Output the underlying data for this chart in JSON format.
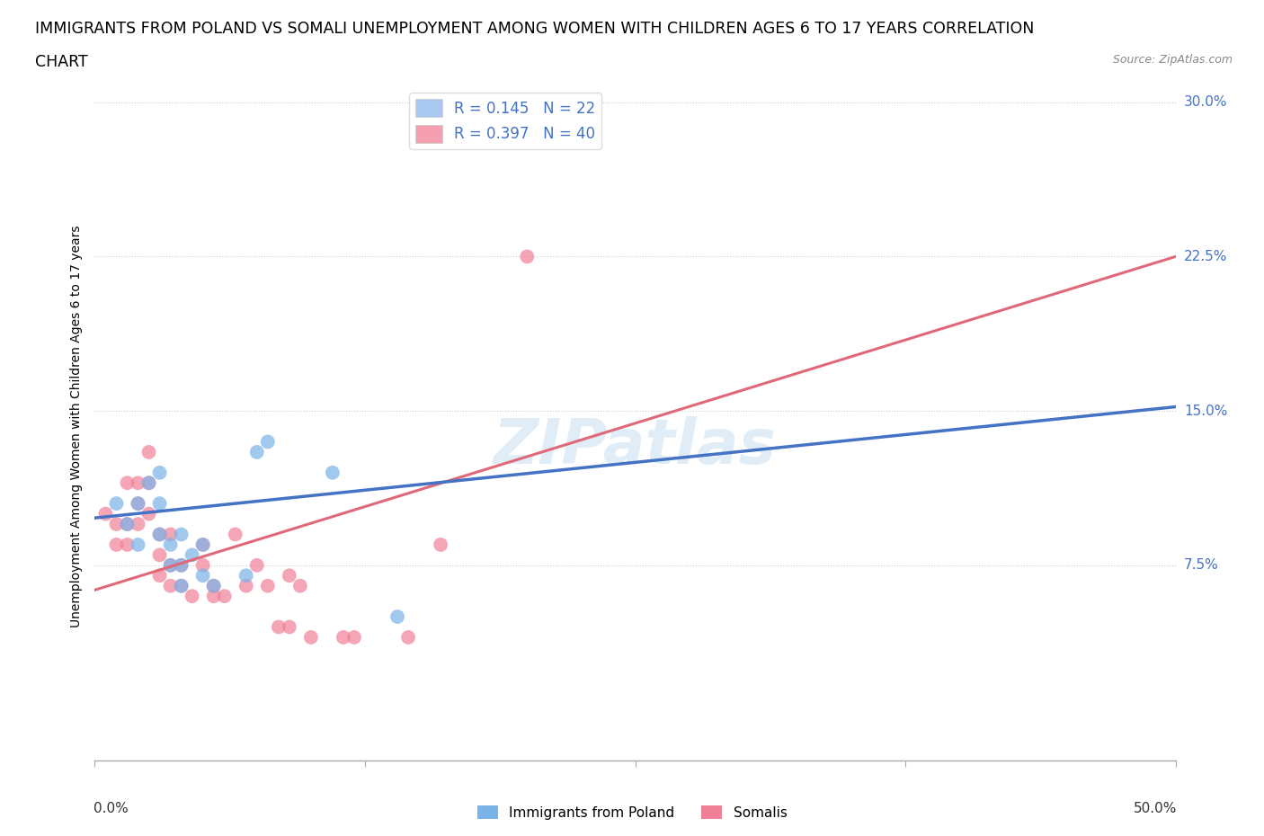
{
  "title_line1": "IMMIGRANTS FROM POLAND VS SOMALI UNEMPLOYMENT AMONG WOMEN WITH CHILDREN AGES 6 TO 17 YEARS CORRELATION",
  "title_line2": "CHART",
  "source": "Source: ZipAtlas.com",
  "ylabel": "Unemployment Among Women with Children Ages 6 to 17 years",
  "legend_entries": [
    {
      "label": "R = 0.145   N = 22",
      "color": "#a8c8f0"
    },
    {
      "label": "R = 0.397   N = 40",
      "color": "#f5a0b0"
    }
  ],
  "watermark": "ZIPatlas",
  "xlim": [
    0.0,
    0.5
  ],
  "ylim": [
    -0.02,
    0.305
  ],
  "yticks": [
    0.0,
    0.075,
    0.15,
    0.225,
    0.3
  ],
  "ytick_labels": [
    "",
    "7.5%",
    "15.0%",
    "22.5%",
    "30.0%"
  ],
  "xticks": [
    0.0,
    0.125,
    0.25,
    0.375,
    0.5
  ],
  "grid_color": "#cccccc",
  "poland_color": "#7ab3e8",
  "somali_color": "#f08098",
  "poland_line_color": "#4472c4",
  "somali_line_color": "#e06878",
  "poland_scatter": [
    [
      0.01,
      0.105
    ],
    [
      0.015,
      0.095
    ],
    [
      0.02,
      0.105
    ],
    [
      0.02,
      0.085
    ],
    [
      0.025,
      0.115
    ],
    [
      0.03,
      0.12
    ],
    [
      0.03,
      0.09
    ],
    [
      0.03,
      0.105
    ],
    [
      0.035,
      0.085
    ],
    [
      0.035,
      0.075
    ],
    [
      0.04,
      0.09
    ],
    [
      0.04,
      0.075
    ],
    [
      0.04,
      0.065
    ],
    [
      0.045,
      0.08
    ],
    [
      0.05,
      0.085
    ],
    [
      0.05,
      0.07
    ],
    [
      0.055,
      0.065
    ],
    [
      0.07,
      0.07
    ],
    [
      0.075,
      0.13
    ],
    [
      0.08,
      0.135
    ],
    [
      0.11,
      0.12
    ],
    [
      0.14,
      0.05
    ]
  ],
  "somali_scatter": [
    [
      0.005,
      0.1
    ],
    [
      0.01,
      0.095
    ],
    [
      0.01,
      0.085
    ],
    [
      0.015,
      0.115
    ],
    [
      0.015,
      0.095
    ],
    [
      0.015,
      0.085
    ],
    [
      0.02,
      0.115
    ],
    [
      0.02,
      0.105
    ],
    [
      0.02,
      0.095
    ],
    [
      0.025,
      0.13
    ],
    [
      0.025,
      0.115
    ],
    [
      0.025,
      0.1
    ],
    [
      0.03,
      0.09
    ],
    [
      0.03,
      0.08
    ],
    [
      0.03,
      0.07
    ],
    [
      0.035,
      0.09
    ],
    [
      0.035,
      0.075
    ],
    [
      0.035,
      0.065
    ],
    [
      0.04,
      0.075
    ],
    [
      0.04,
      0.065
    ],
    [
      0.045,
      0.06
    ],
    [
      0.05,
      0.085
    ],
    [
      0.05,
      0.075
    ],
    [
      0.055,
      0.065
    ],
    [
      0.055,
      0.06
    ],
    [
      0.06,
      0.06
    ],
    [
      0.065,
      0.09
    ],
    [
      0.07,
      0.065
    ],
    [
      0.075,
      0.075
    ],
    [
      0.08,
      0.065
    ],
    [
      0.085,
      0.045
    ],
    [
      0.09,
      0.045
    ],
    [
      0.09,
      0.07
    ],
    [
      0.095,
      0.065
    ],
    [
      0.1,
      0.04
    ],
    [
      0.115,
      0.04
    ],
    [
      0.12,
      0.04
    ],
    [
      0.145,
      0.04
    ],
    [
      0.16,
      0.085
    ],
    [
      0.2,
      0.225
    ]
  ],
  "poland_trend": {
    "x_start": 0.0,
    "y_start": 0.098,
    "x_end": 0.5,
    "y_end": 0.152
  },
  "somali_trend": {
    "x_start": 0.0,
    "y_start": 0.063,
    "x_end": 0.5,
    "y_end": 0.225
  },
  "title_fontsize": 12.5,
  "tick_fontsize": 11,
  "scatter_size": 130
}
